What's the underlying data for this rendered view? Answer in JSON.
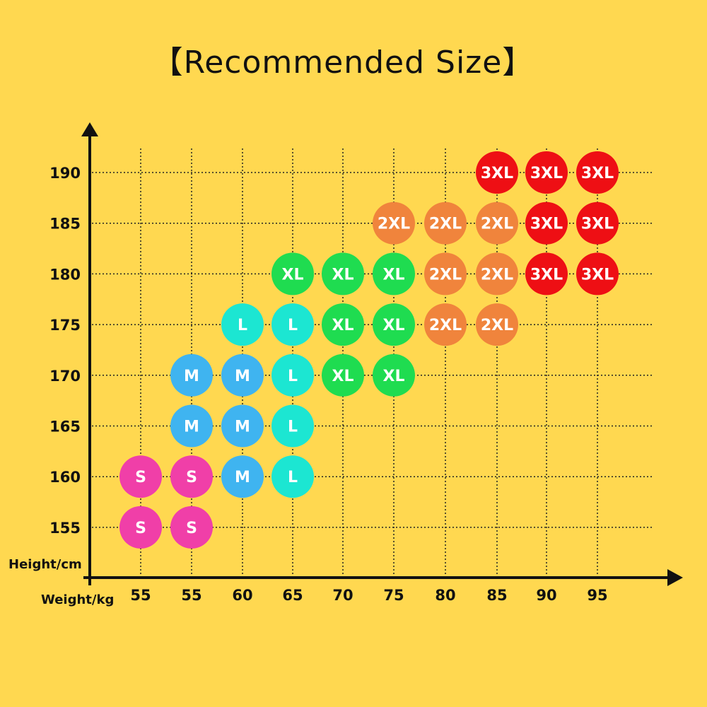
{
  "chart_data": {
    "type": "scatter",
    "title": "【Recommended Size】",
    "xlabel": "Weight/kg",
    "ylabel": "Height/cm",
    "x_tick_labels": [
      "55",
      "55",
      "60",
      "65",
      "70",
      "75",
      "80",
      "85",
      "90",
      "95"
    ],
    "y_tick_labels": [
      "190",
      "185",
      "180",
      "175",
      "170",
      "165",
      "160",
      "155"
    ],
    "grid": true,
    "size_colors": {
      "S": "#f03fa8",
      "M": "#3fb4f0",
      "L": "#1ce6d2",
      "XL": "#1fdc50",
      "2XL": "#f0843c",
      "3XL": "#ee0f14"
    },
    "points": [
      {
        "weight_col": 7,
        "height": 190,
        "size": "3XL"
      },
      {
        "weight_col": 8,
        "height": 190,
        "size": "3XL"
      },
      {
        "weight_col": 9,
        "height": 190,
        "size": "3XL"
      },
      {
        "weight_col": 5,
        "height": 185,
        "size": "2XL"
      },
      {
        "weight_col": 6,
        "height": 185,
        "size": "2XL"
      },
      {
        "weight_col": 7,
        "height": 185,
        "size": "2XL"
      },
      {
        "weight_col": 8,
        "height": 185,
        "size": "3XL"
      },
      {
        "weight_col": 9,
        "height": 185,
        "size": "3XL"
      },
      {
        "weight_col": 3,
        "height": 180,
        "size": "XL"
      },
      {
        "weight_col": 4,
        "height": 180,
        "size": "XL"
      },
      {
        "weight_col": 5,
        "height": 180,
        "size": "XL"
      },
      {
        "weight_col": 6,
        "height": 180,
        "size": "2XL"
      },
      {
        "weight_col": 7,
        "height": 180,
        "size": "2XL"
      },
      {
        "weight_col": 8,
        "height": 180,
        "size": "3XL"
      },
      {
        "weight_col": 9,
        "height": 180,
        "size": "3XL"
      },
      {
        "weight_col": 2,
        "height": 175,
        "size": "L"
      },
      {
        "weight_col": 3,
        "height": 175,
        "size": "L"
      },
      {
        "weight_col": 4,
        "height": 175,
        "size": "XL"
      },
      {
        "weight_col": 5,
        "height": 175,
        "size": "XL"
      },
      {
        "weight_col": 6,
        "height": 175,
        "size": "2XL"
      },
      {
        "weight_col": 7,
        "height": 175,
        "size": "2XL"
      },
      {
        "weight_col": 1,
        "height": 170,
        "size": "M"
      },
      {
        "weight_col": 2,
        "height": 170,
        "size": "M"
      },
      {
        "weight_col": 3,
        "height": 170,
        "size": "L"
      },
      {
        "weight_col": 4,
        "height": 170,
        "size": "XL"
      },
      {
        "weight_col": 5,
        "height": 170,
        "size": "XL"
      },
      {
        "weight_col": 1,
        "height": 165,
        "size": "M"
      },
      {
        "weight_col": 2,
        "height": 165,
        "size": "M"
      },
      {
        "weight_col": 3,
        "height": 165,
        "size": "L"
      },
      {
        "weight_col": 0,
        "height": 160,
        "size": "S"
      },
      {
        "weight_col": 1,
        "height": 160,
        "size": "S"
      },
      {
        "weight_col": 2,
        "height": 160,
        "size": "M"
      },
      {
        "weight_col": 3,
        "height": 160,
        "size": "L"
      },
      {
        "weight_col": 0,
        "height": 155,
        "size": "S"
      },
      {
        "weight_col": 1,
        "height": 155,
        "size": "S"
      }
    ]
  }
}
